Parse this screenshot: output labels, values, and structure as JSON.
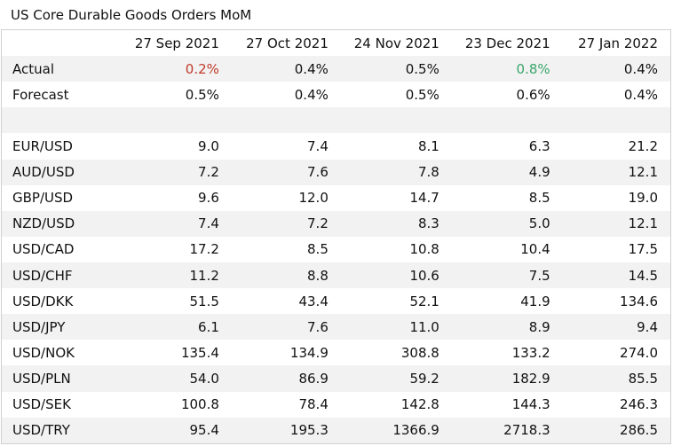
{
  "title": "US Core Durable Goods Orders MoM",
  "chart_data": {
    "type": "table",
    "title": "US Core Durable Goods Orders MoM",
    "columns": [
      "",
      "27 Sep 2021",
      "27 Oct 2021",
      "24 Nov 2021",
      "23 Dec 2021",
      "27 Jan 2022"
    ],
    "actual": {
      "label": "Actual",
      "values": [
        "0.2%",
        "0.4%",
        "0.5%",
        "0.8%",
        "0.4%"
      ],
      "colors": [
        "#c0392b",
        "",
        "",
        "#3aa56c",
        ""
      ]
    },
    "forecast": {
      "label": "Forecast",
      "values": [
        "0.5%",
        "0.4%",
        "0.5%",
        "0.6%",
        "0.4%"
      ]
    },
    "rows": [
      {
        "label": "EUR/USD",
        "values": [
          "9.0",
          "7.4",
          "8.1",
          "6.3",
          "21.2"
        ]
      },
      {
        "label": "AUD/USD",
        "values": [
          "7.2",
          "7.6",
          "7.8",
          "4.9",
          "12.1"
        ]
      },
      {
        "label": "GBP/USD",
        "values": [
          "9.6",
          "12.0",
          "14.7",
          "8.5",
          "19.0"
        ]
      },
      {
        "label": "NZD/USD",
        "values": [
          "7.4",
          "7.2",
          "8.3",
          "5.0",
          "12.1"
        ]
      },
      {
        "label": "USD/CAD",
        "values": [
          "17.2",
          "8.5",
          "10.8",
          "10.4",
          "17.5"
        ]
      },
      {
        "label": "USD/CHF",
        "values": [
          "11.2",
          "8.8",
          "10.6",
          "7.5",
          "14.5"
        ]
      },
      {
        "label": "USD/DKK",
        "values": [
          "51.5",
          "43.4",
          "52.1",
          "41.9",
          "134.6"
        ]
      },
      {
        "label": "USD/JPY",
        "values": [
          "6.1",
          "7.6",
          "11.0",
          "8.9",
          "9.4"
        ]
      },
      {
        "label": "USD/NOK",
        "values": [
          "135.4",
          "134.9",
          "308.8",
          "133.2",
          "274.0"
        ]
      },
      {
        "label": "USD/PLN",
        "values": [
          "54.0",
          "86.9",
          "59.2",
          "182.9",
          "85.5"
        ]
      },
      {
        "label": "USD/SEK",
        "values": [
          "100.8",
          "78.4",
          "142.8",
          "144.3",
          "246.3"
        ]
      },
      {
        "label": "USD/TRY",
        "values": [
          "95.4",
          "195.3",
          "1366.9",
          "2718.3",
          "286.5"
        ]
      }
    ]
  }
}
